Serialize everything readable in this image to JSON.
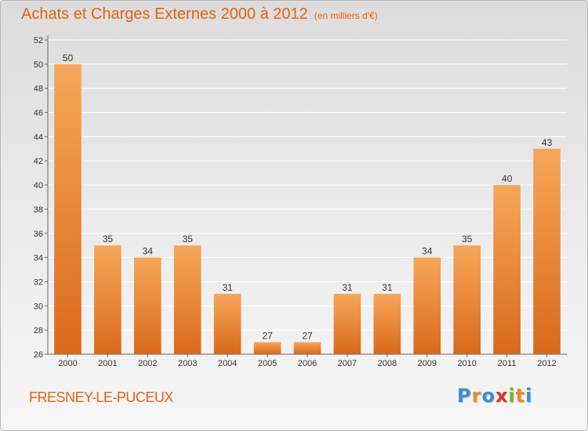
{
  "chart_data": {
    "type": "bar",
    "title": "Achats et Charges Externes 2000 à 2012",
    "subtitle": "(en milliers d'€)",
    "categories": [
      "2000",
      "2001",
      "2002",
      "2003",
      "2004",
      "2005",
      "2006",
      "2007",
      "2008",
      "2009",
      "2010",
      "2011",
      "2012"
    ],
    "values": [
      50,
      35,
      34,
      35,
      31,
      27,
      27,
      31,
      31,
      34,
      35,
      40,
      43
    ],
    "ylim": [
      26,
      52
    ],
    "yticks": [
      26,
      28,
      30,
      32,
      34,
      36,
      38,
      40,
      42,
      44,
      46,
      48,
      50,
      52
    ],
    "grid": true,
    "bar_color_top": "#f7a75a",
    "bar_color_bottom": "#d9691a"
  },
  "footer": {
    "commune": "FRESNEY-LE-PUCEUX",
    "logo_letters": [
      "P",
      "r",
      "o",
      "x",
      "i",
      "t",
      "i"
    ],
    "logo_colors": [
      "#3a8fd0",
      "#f08a1c",
      "#3a8fd0",
      "#e0302a",
      "#7ab51d",
      "#f08a1c",
      "#3a8fd0"
    ]
  },
  "colors": {
    "accent": "#e8620c"
  }
}
